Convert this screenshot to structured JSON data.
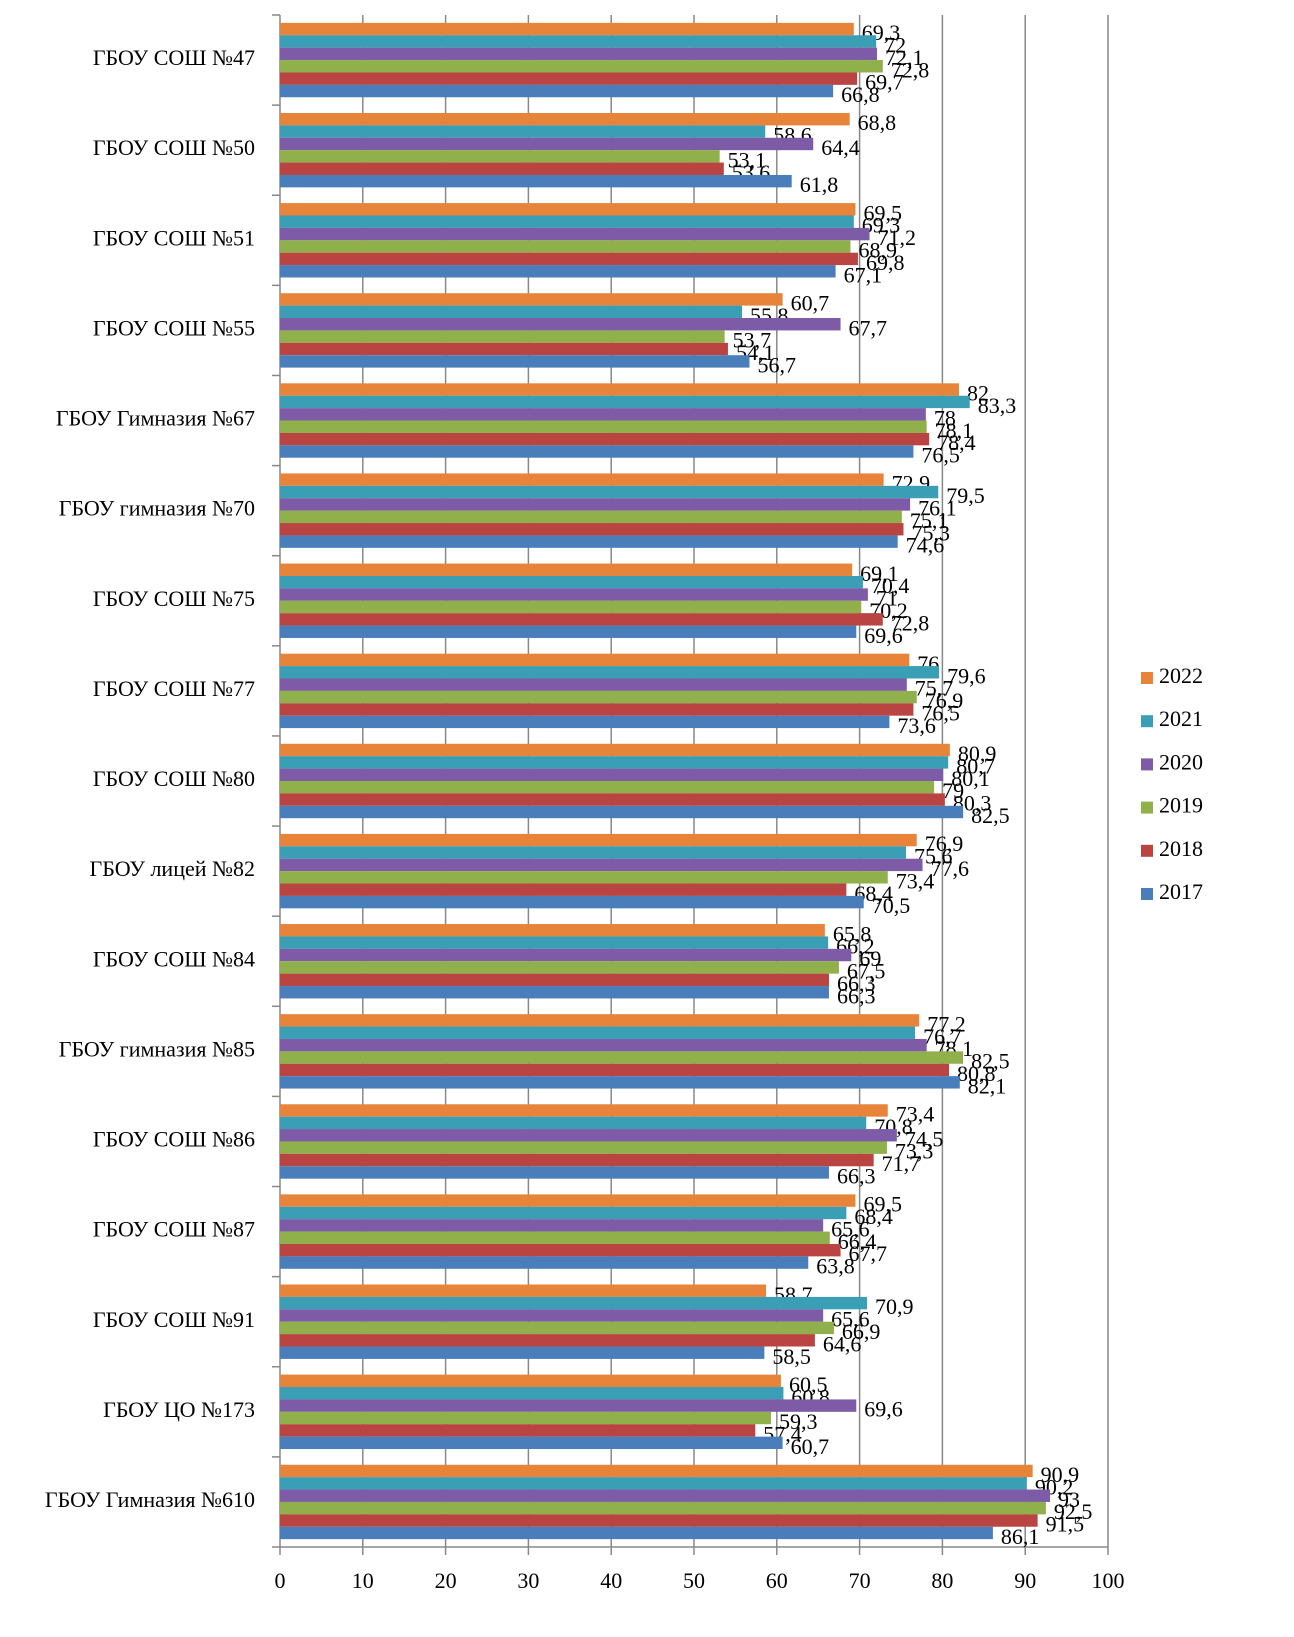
{
  "chart_data": {
    "type": "hbar",
    "categories": [
      "ГБОУ СОШ №47",
      "ГБОУ СОШ №50",
      "ГБОУ СОШ №51",
      "ГБОУ СОШ №55",
      "ГБОУ Гимназия №67",
      "ГБОУ гимназия №70",
      "ГБОУ СОШ №75",
      "ГБОУ СОШ №77",
      "ГБОУ СОШ №80",
      "ГБОУ лицей №82",
      "ГБОУ СОШ №84",
      "ГБОУ гимназия №85",
      "ГБОУ СОШ №86",
      "ГБОУ СОШ №87",
      "ГБОУ СОШ №91",
      "ГБОУ ЦО №173",
      "ГБОУ Гимназия №610"
    ],
    "series": [
      {
        "name": "2022",
        "color": "#e8833a",
        "values": [
          69.3,
          68.8,
          69.5,
          60.7,
          82,
          72.9,
          69.1,
          76,
          80.9,
          76.9,
          65.8,
          77.2,
          73.4,
          69.5,
          58.7,
          60.5,
          90.9
        ],
        "value_labels": [
          "69,3",
          "68,8",
          "69,5",
          "60,7",
          "82",
          "72,9",
          "69,1",
          "76",
          "80,9",
          "76,9",
          "65,8",
          "77,2",
          "73,4",
          "69,5",
          "58,7",
          "60,5",
          "90,9"
        ]
      },
      {
        "name": "2021",
        "color": "#3a9eb5",
        "values": [
          72,
          58.6,
          69.3,
          55.8,
          83.3,
          79.5,
          70.4,
          79.6,
          80.7,
          75.6,
          66.2,
          76.7,
          70.8,
          68.4,
          70.9,
          60.8,
          90.2
        ],
        "value_labels": [
          "72",
          "58,6",
          "69,3",
          "55,8",
          "83,3",
          "79,5",
          "70,4",
          "79,6",
          "80,7",
          "75,6",
          "66,2",
          "76,7",
          "70,8",
          "68,4",
          "70,9",
          "60,8",
          "90,2"
        ]
      },
      {
        "name": "2020",
        "color": "#7d5ba6",
        "values": [
          72.1,
          64.4,
          71.2,
          67.7,
          78,
          76.1,
          71,
          75.7,
          80.1,
          77.6,
          69,
          78.1,
          74.5,
          65.6,
          65.6,
          69.6,
          93
        ],
        "value_labels": [
          "72,1",
          "64,4",
          "71,2",
          "67,7",
          "78",
          "76,1",
          "71",
          "75,7",
          "80,1",
          "77,6",
          "69",
          "78,1",
          "74,5",
          "65,6",
          "65,6",
          "69,6",
          "93"
        ]
      },
      {
        "name": "2019",
        "color": "#8fb04a",
        "values": [
          72.8,
          53.1,
          68.9,
          53.7,
          78.1,
          75.1,
          70.2,
          76.9,
          79,
          73.4,
          67.5,
          82.5,
          73.3,
          66.4,
          66.9,
          59.3,
          92.5
        ],
        "value_labels": [
          "72,8",
          "53,1",
          "68,9",
          "53,7",
          "78,1",
          "75,1",
          "70,2",
          "76,9",
          "79",
          "73,4",
          "67,5",
          "82,5",
          "73,3",
          "66,4",
          "66,9",
          "59,3",
          "92,5"
        ]
      },
      {
        "name": "2018",
        "color": "#b94441",
        "values": [
          69.7,
          53.6,
          69.8,
          54.1,
          78.4,
          75.3,
          72.8,
          76.5,
          80.3,
          68.4,
          66.3,
          80.8,
          71.7,
          67.7,
          64.6,
          57.4,
          91.5
        ],
        "value_labels": [
          "69,7",
          "53,6",
          "69,8",
          "54,1",
          "78,4",
          "75,3",
          "72,8",
          "76,5",
          "80,3",
          "68,4",
          "66,3",
          "80,8",
          "71,7",
          "67,7",
          "64,6",
          "57,4",
          "91,5"
        ]
      },
      {
        "name": "2017",
        "color": "#4a7ebb",
        "values": [
          66.8,
          61.8,
          67.1,
          56.7,
          76.5,
          74.6,
          69.6,
          73.6,
          82.5,
          70.5,
          66.3,
          82.1,
          66.3,
          63.8,
          58.5,
          60.7,
          86.1
        ],
        "value_labels": [
          "66,8",
          "61,8",
          "67,1",
          "56,7",
          "76,5",
          "74,6",
          "69,6",
          "73,6",
          "82,5",
          "70,5",
          "66,3",
          "82,1",
          "66,3",
          "63,8",
          "58,5",
          "60,7",
          "86,1"
        ]
      }
    ],
    "xlim": [
      0,
      100
    ],
    "xticks": [
      0,
      10,
      20,
      30,
      40,
      50,
      60,
      70,
      80,
      90,
      100
    ],
    "grid": true,
    "legend": "right"
  }
}
